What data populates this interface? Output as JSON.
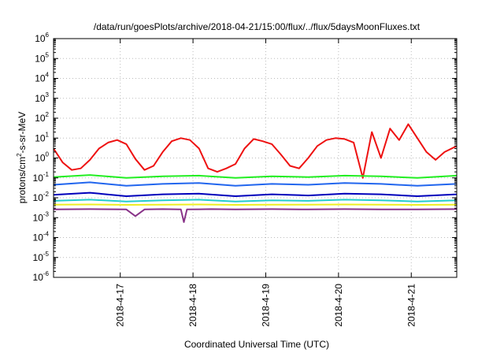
{
  "chart_data": {
    "type": "line",
    "title": "/data/run/goesPlots/archive/2018-04-21/15:00/flux/../flux/5daysMoonFluxes.txt",
    "xlabel": "Coordinated Universal Time (UTC)",
    "ylabel": {
      "main": "protons/cm",
      "sup": "2",
      "rest": "-s-sr-MeV"
    },
    "yscale": "log",
    "ylim": [
      1e-06,
      1000000.0
    ],
    "xlim": [
      "2018-04-16 02:00",
      "2018-04-21 15:00"
    ],
    "grid": true,
    "y_ticks": [
      {
        "value": 1e-06,
        "base": "10",
        "exp": "-6"
      },
      {
        "value": 1e-05,
        "base": "10",
        "exp": "-5"
      },
      {
        "value": 0.0001,
        "base": "10",
        "exp": "-4"
      },
      {
        "value": 0.001,
        "base": "10",
        "exp": "-3"
      },
      {
        "value": 0.01,
        "base": "10",
        "exp": "-2"
      },
      {
        "value": 0.1,
        "base": "10",
        "exp": "-1"
      },
      {
        "value": 1,
        "base": "10",
        "exp": "0"
      },
      {
        "value": 10,
        "base": "10",
        "exp": "1"
      },
      {
        "value": 100,
        "base": "10",
        "exp": "2"
      },
      {
        "value": 1000,
        "base": "10",
        "exp": "3"
      },
      {
        "value": 10000,
        "base": "10",
        "exp": "4"
      },
      {
        "value": 100000,
        "base": "10",
        "exp": "5"
      },
      {
        "value": 1000000,
        "base": "10",
        "exp": "6"
      }
    ],
    "x_ticks": [
      {
        "label": "2018-4-17",
        "time": "2018-04-17 00:00"
      },
      {
        "label": "2018-4-18",
        "time": "2018-04-18 00:00"
      },
      {
        "label": "2018-4-19",
        "time": "2018-04-19 00:00"
      },
      {
        "label": "2018-4-20",
        "time": "2018-04-20 00:00"
      },
      {
        "label": "2018-4-21",
        "time": "2018-04-21 00:00"
      }
    ],
    "series": [
      {
        "color": "#ee1111",
        "x": [
          "2018-04-16 02:00",
          "2018-04-16 05:00",
          "2018-04-16 08:00",
          "2018-04-16 11:00",
          "2018-04-16 14:00",
          "2018-04-16 17:00",
          "2018-04-16 20:00",
          "2018-04-16 23:00",
          "2018-04-17 02:00",
          "2018-04-17 05:00",
          "2018-04-17 08:00",
          "2018-04-17 11:00",
          "2018-04-17 14:00",
          "2018-04-17 17:00",
          "2018-04-17 20:00",
          "2018-04-17 23:00",
          "2018-04-18 02:00",
          "2018-04-18 05:00",
          "2018-04-18 08:00",
          "2018-04-18 11:00",
          "2018-04-18 14:00",
          "2018-04-18 17:00",
          "2018-04-18 20:00",
          "2018-04-18 23:00",
          "2018-04-19 02:00",
          "2018-04-19 05:00",
          "2018-04-19 08:00",
          "2018-04-19 11:00",
          "2018-04-19 14:00",
          "2018-04-19 17:00",
          "2018-04-19 20:00",
          "2018-04-19 23:00",
          "2018-04-20 02:00",
          "2018-04-20 05:00",
          "2018-04-20 08:00",
          "2018-04-20 11:00",
          "2018-04-20 14:00",
          "2018-04-20 17:00",
          "2018-04-20 20:00",
          "2018-04-20 23:00",
          "2018-04-21 02:00",
          "2018-04-21 05:00",
          "2018-04-21 08:00",
          "2018-04-21 11:00",
          "2018-04-21 15:00"
        ],
        "values": [
          3,
          0.6,
          0.25,
          0.3,
          0.8,
          3,
          6,
          8,
          5,
          0.9,
          0.25,
          0.4,
          2,
          7,
          10,
          8,
          3,
          0.3,
          0.2,
          0.3,
          0.5,
          3,
          9,
          7,
          5,
          1.5,
          0.4,
          0.3,
          1,
          4,
          8,
          10,
          9,
          6,
          0.1,
          20,
          1,
          30,
          8,
          50,
          10,
          2,
          0.8,
          2,
          4
        ]
      },
      {
        "color": "#22ee22",
        "x": [
          "2018-04-16 02:00",
          "2018-04-16 14:00",
          "2018-04-17 02:00",
          "2018-04-17 14:00",
          "2018-04-18 02:00",
          "2018-04-18 14:00",
          "2018-04-19 02:00",
          "2018-04-19 14:00",
          "2018-04-20 02:00",
          "2018-04-20 14:00",
          "2018-04-21 02:00",
          "2018-04-21 15:00"
        ],
        "values": [
          0.11,
          0.14,
          0.1,
          0.12,
          0.13,
          0.1,
          0.12,
          0.11,
          0.13,
          0.12,
          0.1,
          0.13
        ]
      },
      {
        "color": "#2266ee",
        "x": [
          "2018-04-16 02:00",
          "2018-04-16 14:00",
          "2018-04-17 02:00",
          "2018-04-17 14:00",
          "2018-04-18 02:00",
          "2018-04-18 14:00",
          "2018-04-19 02:00",
          "2018-04-19 14:00",
          "2018-04-20 02:00",
          "2018-04-20 14:00",
          "2018-04-21 02:00",
          "2018-04-21 15:00"
        ],
        "values": [
          0.045,
          0.06,
          0.04,
          0.05,
          0.055,
          0.04,
          0.05,
          0.045,
          0.055,
          0.05,
          0.04,
          0.05
        ]
      },
      {
        "color": "#0000bb",
        "x": [
          "2018-04-16 02:00",
          "2018-04-16 14:00",
          "2018-04-17 02:00",
          "2018-04-17 14:00",
          "2018-04-18 02:00",
          "2018-04-18 14:00",
          "2018-04-19 02:00",
          "2018-04-19 14:00",
          "2018-04-20 02:00",
          "2018-04-20 14:00",
          "2018-04-21 02:00",
          "2018-04-21 15:00"
        ],
        "values": [
          0.014,
          0.018,
          0.012,
          0.015,
          0.016,
          0.012,
          0.015,
          0.013,
          0.016,
          0.015,
          0.012,
          0.015
        ]
      },
      {
        "color": "#22cccc",
        "x": [
          "2018-04-16 02:00",
          "2018-04-16 14:00",
          "2018-04-17 02:00",
          "2018-04-17 14:00",
          "2018-04-18 02:00",
          "2018-04-18 14:00",
          "2018-04-19 02:00",
          "2018-04-19 14:00",
          "2018-04-20 02:00",
          "2018-04-20 14:00",
          "2018-04-21 02:00",
          "2018-04-21 15:00"
        ],
        "values": [
          0.007,
          0.008,
          0.0065,
          0.0075,
          0.008,
          0.0065,
          0.0075,
          0.007,
          0.008,
          0.0075,
          0.0065,
          0.0075
        ]
      },
      {
        "color": "#eeee22",
        "x": [
          "2018-04-16 02:00",
          "2018-04-16 14:00",
          "2018-04-17 02:00",
          "2018-04-17 14:00",
          "2018-04-18 02:00",
          "2018-04-18 14:00",
          "2018-04-19 02:00",
          "2018-04-19 14:00",
          "2018-04-20 02:00",
          "2018-04-20 14:00",
          "2018-04-21 02:00",
          "2018-04-21 15:00"
        ],
        "values": [
          0.0045,
          0.0046,
          0.0044,
          0.0045,
          0.0046,
          0.0044,
          0.0045,
          0.0045,
          0.0046,
          0.0045,
          0.0044,
          0.0045
        ]
      },
      {
        "color": "#883388",
        "x": [
          "2018-04-16 02:00",
          "2018-04-16 14:00",
          "2018-04-17 02:00",
          "2018-04-17 05:00",
          "2018-04-17 08:00",
          "2018-04-17 14:00",
          "2018-04-17 20:00",
          "2018-04-17 21:00",
          "2018-04-17 22:00",
          "2018-04-18 06:00",
          "2018-04-18 14:00",
          "2018-04-19 02:00",
          "2018-04-19 14:00",
          "2018-04-20 02:00",
          "2018-04-20 14:00",
          "2018-04-21 02:00",
          "2018-04-21 15:00"
        ],
        "values": [
          0.0026,
          0.0027,
          0.0026,
          0.0012,
          0.0026,
          0.0027,
          0.0026,
          0.0006,
          0.0026,
          0.0027,
          0.0026,
          0.0027,
          0.0026,
          0.0027,
          0.0026,
          0.0026,
          0.0027
        ]
      }
    ]
  }
}
